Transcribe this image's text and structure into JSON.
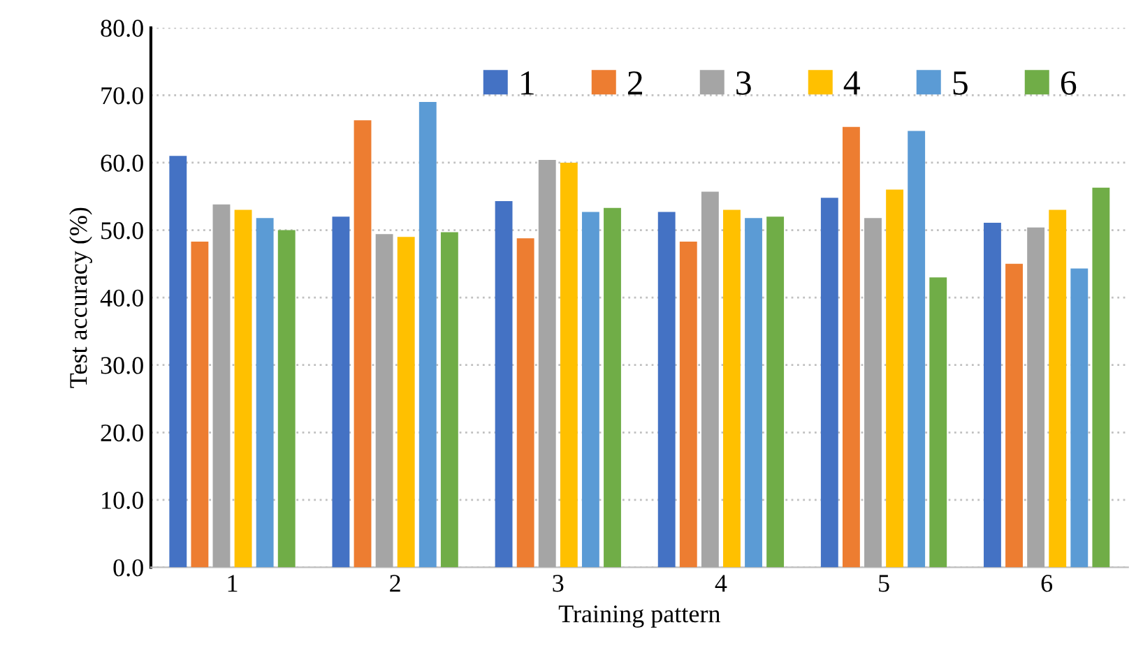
{
  "chart_data": {
    "type": "bar",
    "xlabel": "Training pattern",
    "ylabel": "Test accuracy (%)",
    "categories": [
      "1",
      "2",
      "3",
      "4",
      "5",
      "6"
    ],
    "series": [
      {
        "name": "1",
        "color": "#4472c4",
        "values": [
          61.0,
          52.0,
          54.3,
          52.7,
          54.8,
          51.1
        ]
      },
      {
        "name": "2",
        "color": "#ed7d31",
        "values": [
          48.3,
          66.3,
          48.8,
          48.3,
          65.3,
          45.0
        ]
      },
      {
        "name": "3",
        "color": "#a5a5a5",
        "values": [
          53.8,
          49.4,
          60.4,
          55.7,
          51.8,
          50.4
        ]
      },
      {
        "name": "4",
        "color": "#ffc000",
        "values": [
          53.0,
          49.0,
          60.0,
          53.0,
          56.0,
          53.0
        ]
      },
      {
        "name": "5",
        "color": "#5b9bd5",
        "values": [
          51.8,
          69.0,
          52.7,
          51.8,
          64.7,
          44.3
        ]
      },
      {
        "name": "6",
        "color": "#70ad47",
        "values": [
          50.0,
          49.7,
          53.3,
          52.0,
          43.0,
          56.3
        ]
      }
    ],
    "ylim": [
      0,
      80
    ],
    "yticks": [
      {
        "value": 0,
        "label": "0.0"
      },
      {
        "value": 10,
        "label": "10.0"
      },
      {
        "value": 20,
        "label": "20.0"
      },
      {
        "value": 30,
        "label": "30.0"
      },
      {
        "value": 40,
        "label": "40.0"
      },
      {
        "value": 50,
        "label": "50.0"
      },
      {
        "value": 60,
        "label": "60.0"
      },
      {
        "value": 70,
        "label": "70.0"
      },
      {
        "value": 80,
        "label": "80.0"
      }
    ],
    "grid": "y",
    "legend": "top right"
  }
}
